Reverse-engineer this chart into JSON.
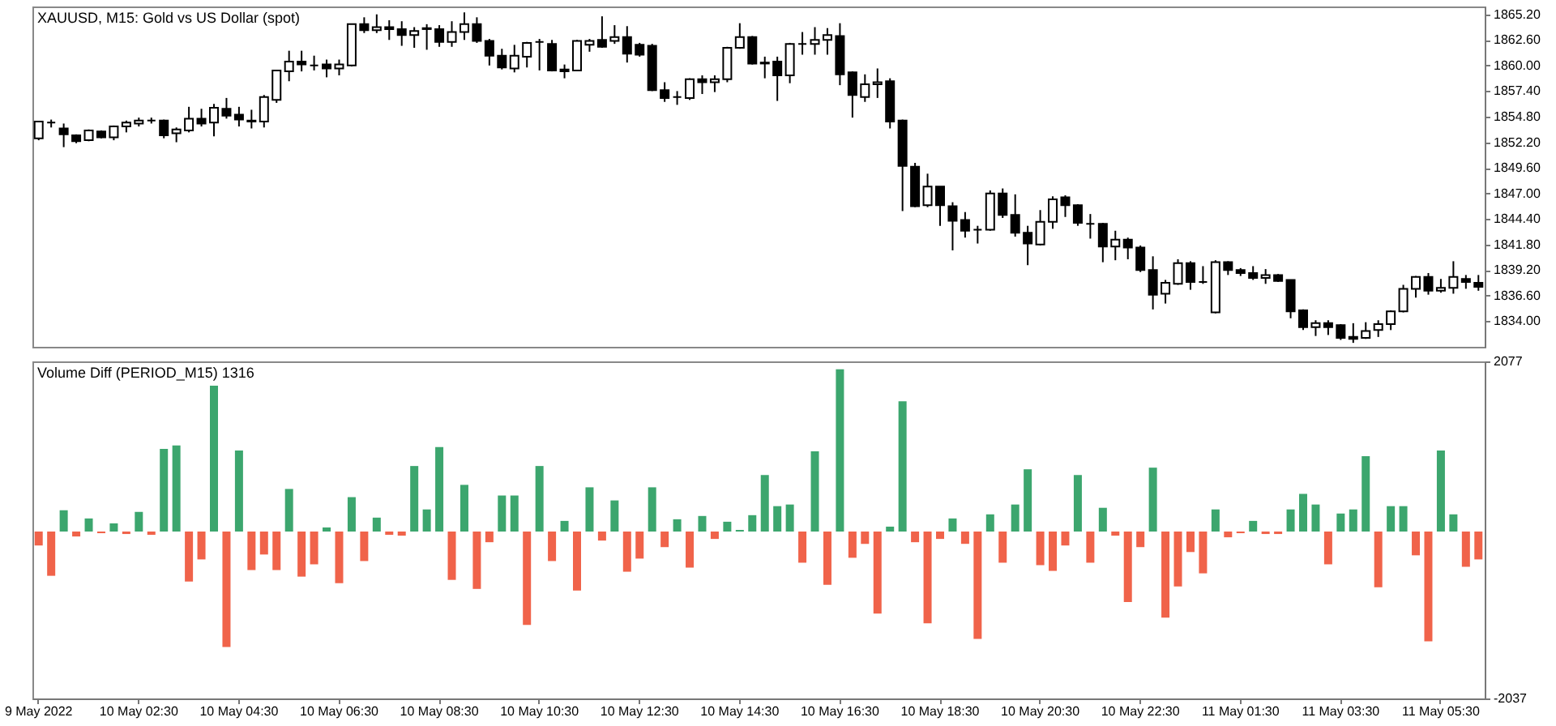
{
  "chart_data": [
    {
      "type": "candlestick",
      "title": "XAUUSD, M15:  Gold vs US Dollar (spot)",
      "color": "#000000",
      "tick_labels": "y",
      "ohlc": [
        [
          1852.6,
          1854.3,
          1852.4,
          1854.3
        ],
        [
          1854.2,
          1854.5,
          1853.7,
          1854.2
        ],
        [
          1853.6,
          1854.1,
          1851.7,
          1853.0
        ],
        [
          1852.9,
          1853.0,
          1852.1,
          1852.3
        ],
        [
          1852.4,
          1853.5,
          1852.3,
          1853.4
        ],
        [
          1853.3,
          1853.4,
          1852.6,
          1852.7
        ],
        [
          1852.7,
          1853.9,
          1852.4,
          1853.8
        ],
        [
          1853.8,
          1854.4,
          1853.2,
          1854.2
        ],
        [
          1854.1,
          1854.7,
          1853.8,
          1854.4
        ],
        [
          1854.4,
          1854.7,
          1854.1,
          1854.4
        ],
        [
          1854.4,
          1854.5,
          1852.6,
          1852.9
        ],
        [
          1853.1,
          1853.7,
          1852.2,
          1853.5
        ],
        [
          1853.4,
          1855.8,
          1853.2,
          1854.6
        ],
        [
          1854.6,
          1855.6,
          1853.8,
          1854.1
        ],
        [
          1854.2,
          1856.1,
          1852.8,
          1855.7
        ],
        [
          1855.6,
          1856.7,
          1854.6,
          1854.9
        ],
        [
          1855.0,
          1855.8,
          1853.8,
          1854.5
        ],
        [
          1854.4,
          1855.5,
          1853.6,
          1854.3
        ],
        [
          1854.3,
          1857.0,
          1853.7,
          1856.8
        ],
        [
          1856.5,
          1859.5,
          1856.2,
          1859.5
        ],
        [
          1859.4,
          1861.5,
          1858.4,
          1860.4
        ],
        [
          1860.4,
          1861.5,
          1859.4,
          1860.1
        ],
        [
          1860.0,
          1861.0,
          1859.5,
          1860.0
        ],
        [
          1860.1,
          1860.6,
          1858.8,
          1859.7
        ],
        [
          1859.7,
          1860.6,
          1859.0,
          1860.1
        ],
        [
          1860.0,
          1864.2,
          1859.9,
          1864.2
        ],
        [
          1864.2,
          1864.9,
          1863.3,
          1863.6
        ],
        [
          1863.6,
          1865.2,
          1863.3,
          1863.9
        ],
        [
          1863.9,
          1864.6,
          1862.6,
          1863.7
        ],
        [
          1863.7,
          1864.5,
          1862.0,
          1863.1
        ],
        [
          1863.1,
          1863.9,
          1861.8,
          1863.5
        ],
        [
          1863.7,
          1864.2,
          1861.6,
          1863.8
        ],
        [
          1863.7,
          1864.1,
          1861.9,
          1862.4
        ],
        [
          1862.4,
          1864.5,
          1861.9,
          1863.4
        ],
        [
          1863.4,
          1865.4,
          1862.6,
          1864.2
        ],
        [
          1864.2,
          1864.9,
          1862.3,
          1862.5
        ],
        [
          1862.5,
          1862.7,
          1860.0,
          1861.0
        ],
        [
          1861.0,
          1861.7,
          1859.6,
          1859.8
        ],
        [
          1859.7,
          1862.1,
          1859.3,
          1861.0
        ],
        [
          1860.9,
          1862.4,
          1859.8,
          1862.3
        ],
        [
          1862.4,
          1862.7,
          1859.5,
          1862.4
        ],
        [
          1862.2,
          1862.6,
          1859.4,
          1859.5
        ],
        [
          1859.6,
          1860.1,
          1858.7,
          1859.4
        ],
        [
          1859.5,
          1862.6,
          1859.4,
          1862.5
        ],
        [
          1862.1,
          1862.7,
          1861.4,
          1862.5
        ],
        [
          1862.6,
          1865.0,
          1861.8,
          1861.9
        ],
        [
          1862.5,
          1864.1,
          1862.2,
          1862.9
        ],
        [
          1862.9,
          1864.0,
          1860.3,
          1861.2
        ],
        [
          1862.1,
          1862.3,
          1860.9,
          1861.1
        ],
        [
          1862.0,
          1862.2,
          1857.4,
          1857.5
        ],
        [
          1857.5,
          1858.3,
          1856.3,
          1856.7
        ],
        [
          1856.8,
          1857.4,
          1856.0,
          1856.8
        ],
        [
          1856.7,
          1858.7,
          1856.5,
          1858.6
        ],
        [
          1858.6,
          1859.0,
          1857.1,
          1858.3
        ],
        [
          1858.3,
          1859.0,
          1857.3,
          1858.6
        ],
        [
          1858.6,
          1861.9,
          1858.3,
          1861.8
        ],
        [
          1861.8,
          1864.3,
          1861.7,
          1862.9
        ],
        [
          1862.9,
          1863.0,
          1860.1,
          1860.2
        ],
        [
          1860.2,
          1860.9,
          1858.7,
          1860.3
        ],
        [
          1860.4,
          1860.9,
          1856.4,
          1859.0
        ],
        [
          1859.0,
          1862.3,
          1858.2,
          1862.2
        ],
        [
          1862.2,
          1863.4,
          1861.1,
          1862.2
        ],
        [
          1862.2,
          1863.9,
          1861.1,
          1862.6
        ],
        [
          1862.6,
          1863.8,
          1861.1,
          1863.1
        ],
        [
          1863.0,
          1864.3,
          1858.0,
          1859.1
        ],
        [
          1859.3,
          1859.4,
          1854.7,
          1857.0
        ],
        [
          1856.8,
          1859.1,
          1856.3,
          1858.1
        ],
        [
          1858.1,
          1859.7,
          1856.7,
          1858.3
        ],
        [
          1858.4,
          1858.7,
          1853.6,
          1854.3
        ],
        [
          1854.4,
          1854.5,
          1845.2,
          1849.8
        ],
        [
          1849.7,
          1850.1,
          1845.6,
          1845.7
        ],
        [
          1845.8,
          1849.0,
          1845.6,
          1847.7
        ],
        [
          1847.7,
          1847.7,
          1843.7,
          1845.8
        ],
        [
          1845.7,
          1846.1,
          1841.2,
          1844.2
        ],
        [
          1844.3,
          1845.1,
          1842.5,
          1843.2
        ],
        [
          1843.3,
          1843.7,
          1841.9,
          1843.3
        ],
        [
          1843.3,
          1847.3,
          1843.2,
          1847.0
        ],
        [
          1847.0,
          1847.5,
          1844.5,
          1844.8
        ],
        [
          1844.8,
          1846.9,
          1842.6,
          1843.0
        ],
        [
          1843.0,
          1843.7,
          1839.7,
          1841.9
        ],
        [
          1841.8,
          1845.3,
          1841.7,
          1844.1
        ],
        [
          1844.1,
          1846.7,
          1843.4,
          1846.4
        ],
        [
          1846.6,
          1846.8,
          1844.6,
          1845.8
        ],
        [
          1845.8,
          1845.9,
          1843.7,
          1844.0
        ],
        [
          1843.9,
          1844.9,
          1842.4,
          1843.9
        ],
        [
          1843.9,
          1844.0,
          1840.0,
          1841.6
        ],
        [
          1841.6,
          1843.2,
          1840.2,
          1842.3
        ],
        [
          1842.3,
          1842.5,
          1840.3,
          1841.5
        ],
        [
          1841.5,
          1841.7,
          1839.0,
          1839.2
        ],
        [
          1839.2,
          1840.6,
          1835.2,
          1836.7
        ],
        [
          1836.8,
          1838.2,
          1835.8,
          1837.9
        ],
        [
          1837.8,
          1840.3,
          1837.7,
          1839.9
        ],
        [
          1839.9,
          1840.1,
          1837.2,
          1838.0
        ],
        [
          1838.0,
          1839.6,
          1837.8,
          1838.0
        ],
        [
          1834.9,
          1840.2,
          1834.8,
          1840.0
        ],
        [
          1840.0,
          1840.1,
          1838.7,
          1839.2
        ],
        [
          1839.2,
          1839.4,
          1838.6,
          1838.9
        ],
        [
          1838.9,
          1839.6,
          1838.2,
          1838.4
        ],
        [
          1838.4,
          1839.3,
          1837.8,
          1838.7
        ],
        [
          1838.7,
          1838.8,
          1838.0,
          1838.1
        ],
        [
          1838.2,
          1838.2,
          1834.3,
          1835.0
        ],
        [
          1835.1,
          1835.2,
          1833.1,
          1833.4
        ],
        [
          1833.4,
          1834.1,
          1832.5,
          1833.8
        ],
        [
          1833.8,
          1834.1,
          1832.6,
          1833.4
        ],
        [
          1833.6,
          1833.7,
          1832.1,
          1832.3
        ],
        [
          1832.4,
          1833.8,
          1831.8,
          1832.2
        ],
        [
          1832.3,
          1833.9,
          1832.2,
          1833.0
        ],
        [
          1833.1,
          1834.1,
          1832.4,
          1833.7
        ],
        [
          1833.7,
          1835.1,
          1833.1,
          1835.0
        ],
        [
          1835.0,
          1837.7,
          1834.9,
          1837.3
        ],
        [
          1837.3,
          1838.6,
          1836.4,
          1838.5
        ],
        [
          1838.5,
          1838.9,
          1836.7,
          1837.1
        ],
        [
          1837.1,
          1838.3,
          1836.9,
          1837.4
        ],
        [
          1837.4,
          1840.1,
          1836.8,
          1838.5
        ],
        [
          1838.3,
          1838.7,
          1837.3,
          1838.0
        ],
        [
          1837.9,
          1838.7,
          1837.1,
          1837.5
        ]
      ],
      "ylim": [
        1831.4,
        1866.0
      ],
      "yticks": [
        {
          "value": 1865.2,
          "label": "1865.20"
        },
        {
          "value": 1862.6,
          "label": "1862.60"
        },
        {
          "value": 1860,
          "label": "1860.00"
        },
        {
          "value": 1857.4,
          "label": "1857.40"
        },
        {
          "value": 1854.8,
          "label": "1854.80"
        },
        {
          "value": 1852.2,
          "label": "1852.20"
        },
        {
          "value": 1849.6,
          "label": "1849.60"
        },
        {
          "value": 1847,
          "label": "1847.00"
        },
        {
          "value": 1844.4,
          "label": "1844.40"
        },
        {
          "value": 1841.8,
          "label": "1841.80"
        },
        {
          "value": 1839.2,
          "label": "1839.20"
        },
        {
          "value": 1836.6,
          "label": "1836.60"
        },
        {
          "value": 1834,
          "label": "1834.00"
        }
      ]
    },
    {
      "type": "bar",
      "title": "Volume Diff (PERIOD_M15)  1316",
      "categories": [
        "9 May 2022",
        null,
        null,
        null,
        null,
        null,
        null,
        null,
        "10 May 02:30",
        null,
        null,
        null,
        null,
        null,
        null,
        null,
        "10 May 04:30",
        null,
        null,
        null,
        null,
        null,
        null,
        null,
        "10 May 06:30",
        null,
        null,
        null,
        null,
        null,
        null,
        null,
        "10 May 08:30",
        null,
        null,
        null,
        null,
        null,
        null,
        null,
        "10 May 10:30",
        null,
        null,
        null,
        null,
        null,
        null,
        null,
        "10 May 12:30",
        null,
        null,
        null,
        null,
        null,
        null,
        null,
        "10 May 14:30",
        null,
        null,
        null,
        null,
        null,
        null,
        null,
        "10 May 16:30",
        null,
        null,
        null,
        null,
        null,
        null,
        null,
        "10 May 18:30",
        null,
        null,
        null,
        null,
        null,
        null,
        null,
        "10 May 20:30",
        null,
        null,
        null,
        null,
        null,
        null,
        null,
        "10 May 22:30",
        null,
        null,
        null,
        null,
        null,
        null,
        null,
        "11 May 01:30",
        null,
        null,
        null,
        null,
        null,
        null,
        null,
        "11 May 03:30",
        null,
        null,
        null,
        null,
        null,
        null,
        null,
        "11 May 05:30",
        null,
        null,
        null
      ],
      "values": [
        -170,
        -540,
        260,
        -60,
        160,
        -20,
        100,
        -30,
        240,
        -40,
        1010,
        1050,
        -610,
        -340,
        1780,
        -1410,
        990,
        -470,
        -280,
        -470,
        520,
        -550,
        -400,
        50,
        -630,
        420,
        -360,
        170,
        -40,
        -50,
        800,
        270,
        1030,
        -590,
        570,
        -700,
        -130,
        440,
        440,
        -1140,
        800,
        -360,
        130,
        -720,
        540,
        -110,
        380,
        -490,
        -330,
        540,
        -190,
        150,
        -440,
        190,
        -90,
        120,
        20,
        200,
        690,
        310,
        330,
        -380,
        980,
        -650,
        1980,
        -320,
        -150,
        -1000,
        60,
        1590,
        -130,
        -1120,
        -90,
        160,
        -150,
        -1310,
        210,
        -380,
        330,
        760,
        -410,
        -480,
        -170,
        690,
        -380,
        290,
        -50,
        -860,
        -190,
        780,
        -1050,
        -670,
        -250,
        -510,
        270,
        -70,
        -20,
        130,
        -30,
        -30,
        270,
        460,
        330,
        -400,
        220,
        270,
        920,
        -680,
        310,
        310,
        -290,
        -1340,
        990,
        210,
        -430,
        -340
      ],
      "colors": [
        "#f0634a",
        "#f0634a",
        "#3ca66e",
        "#f0634a",
        "#3ca66e",
        "#f0634a",
        "#3ca66e",
        "#f0634a",
        "#3ca66e",
        "#f0634a",
        "#3ca66e",
        "#3ca66e",
        "#f0634a",
        "#f0634a",
        "#3ca66e",
        "#f0634a",
        "#3ca66e",
        "#f0634a",
        "#f0634a",
        "#f0634a",
        "#3ca66e",
        "#f0634a",
        "#f0634a",
        "#3ca66e",
        "#f0634a",
        "#3ca66e",
        "#f0634a",
        "#3ca66e",
        "#f0634a",
        "#f0634a",
        "#3ca66e",
        "#3ca66e",
        "#3ca66e",
        "#f0634a",
        "#3ca66e",
        "#f0634a",
        "#f0634a",
        "#3ca66e",
        "#3ca66e",
        "#f0634a",
        "#3ca66e",
        "#f0634a",
        "#3ca66e",
        "#f0634a",
        "#3ca66e",
        "#f0634a",
        "#3ca66e",
        "#f0634a",
        "#f0634a",
        "#3ca66e",
        "#f0634a",
        "#3ca66e",
        "#f0634a",
        "#3ca66e",
        "#f0634a",
        "#3ca66e",
        "#3ca66e",
        "#3ca66e",
        "#3ca66e",
        "#3ca66e",
        "#3ca66e",
        "#f0634a",
        "#3ca66e",
        "#f0634a",
        "#3ca66e",
        "#f0634a",
        "#f0634a",
        "#f0634a",
        "#3ca66e",
        "#3ca66e",
        "#f0634a",
        "#f0634a",
        "#f0634a",
        "#3ca66e",
        "#f0634a",
        "#f0634a",
        "#3ca66e",
        "#f0634a",
        "#3ca66e",
        "#3ca66e",
        "#f0634a",
        "#f0634a",
        "#f0634a",
        "#3ca66e",
        "#f0634a",
        "#3ca66e",
        "#f0634a",
        "#f0634a",
        "#f0634a",
        "#3ca66e",
        "#f0634a",
        "#f0634a",
        "#f0634a",
        "#f0634a",
        "#3ca66e",
        "#f0634a",
        "#f0634a",
        "#3ca66e",
        "#f0634a",
        "#f0634a",
        "#3ca66e",
        "#3ca66e",
        "#3ca66e",
        "#f0634a",
        "#3ca66e",
        "#3ca66e",
        "#3ca66e",
        "#f0634a",
        "#3ca66e",
        "#3ca66e",
        "#f0634a",
        "#f0634a",
        "#3ca66e",
        "#3ca66e",
        "#f0634a",
        "#f0634a"
      ],
      "ylim": [
        -2037,
        2077
      ],
      "yticks": [
        2077,
        -2037
      ]
    }
  ]
}
